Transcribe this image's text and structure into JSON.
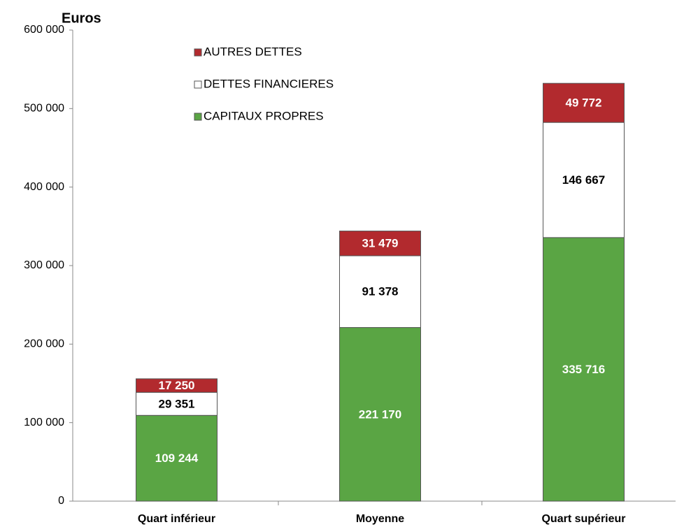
{
  "chart_data": {
    "type": "stacked-bar",
    "y_label": "Euros",
    "categories": [
      "Quart inférieur",
      "Moyenne",
      "Quart supérieur"
    ],
    "series": [
      {
        "name": "CAPITAUX PROPRES",
        "color": "#5aa544",
        "label_color": "#ffffff",
        "values": [
          109244,
          221170,
          335716
        ],
        "value_labels": [
          "109 244",
          "221 170",
          "335 716"
        ]
      },
      {
        "name": "DETTES FINANCIERES",
        "color": "#ffffff",
        "label_color": "#000000",
        "values": [
          29351,
          91378,
          146667
        ],
        "value_labels": [
          "29 351",
          "91 378",
          "146 667"
        ]
      },
      {
        "name": "AUTRES DETTES",
        "color": "#b22a2e",
        "label_color": "#ffffff",
        "values": [
          17250,
          31479,
          49772
        ],
        "value_labels": [
          "17 250",
          "31 479",
          "49 772"
        ]
      }
    ],
    "ylim": [
      0,
      600000
    ],
    "yticks": [
      0,
      {
        "value": 100000,
        "label": "100 000"
      },
      {
        "value": 200000,
        "label": "200 000"
      },
      {
        "value": 300000,
        "label": "300 000"
      },
      {
        "value": 400000,
        "label": "400 000"
      },
      {
        "value": 500000,
        "label": "500 000"
      },
      {
        "value": 600000,
        "label": "600 000"
      }
    ],
    "grid": false,
    "legend": "top-left"
  }
}
